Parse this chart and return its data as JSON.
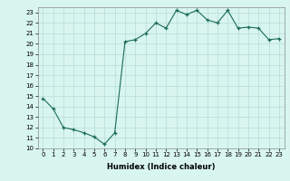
{
  "x": [
    0,
    1,
    2,
    3,
    4,
    5,
    6,
    7,
    8,
    9,
    10,
    11,
    12,
    13,
    14,
    15,
    16,
    17,
    18,
    19,
    20,
    21,
    22,
    23
  ],
  "y": [
    14.8,
    13.8,
    12.0,
    11.8,
    11.5,
    11.1,
    10.4,
    11.5,
    20.2,
    20.4,
    21.0,
    22.0,
    21.5,
    23.2,
    22.8,
    23.2,
    22.3,
    22.0,
    23.2,
    21.5,
    21.6,
    21.5,
    20.4,
    20.5
  ],
  "line_color": "#1a6b5a",
  "marker": "+",
  "marker_size": 3,
  "xlabel": "Humidex (Indice chaleur)",
  "xlim": [
    -0.5,
    23.5
  ],
  "ylim": [
    10,
    23.5
  ],
  "yticks": [
    10,
    11,
    12,
    13,
    14,
    15,
    16,
    17,
    18,
    19,
    20,
    21,
    22,
    23
  ],
  "xticks": [
    0,
    1,
    2,
    3,
    4,
    5,
    6,
    7,
    8,
    9,
    10,
    11,
    12,
    13,
    14,
    15,
    16,
    17,
    18,
    19,
    20,
    21,
    22,
    23
  ],
  "bg_color": "#d8f5f0",
  "grid_color": "#b8dcd6",
  "label_fontsize": 6,
  "tick_fontsize": 5
}
